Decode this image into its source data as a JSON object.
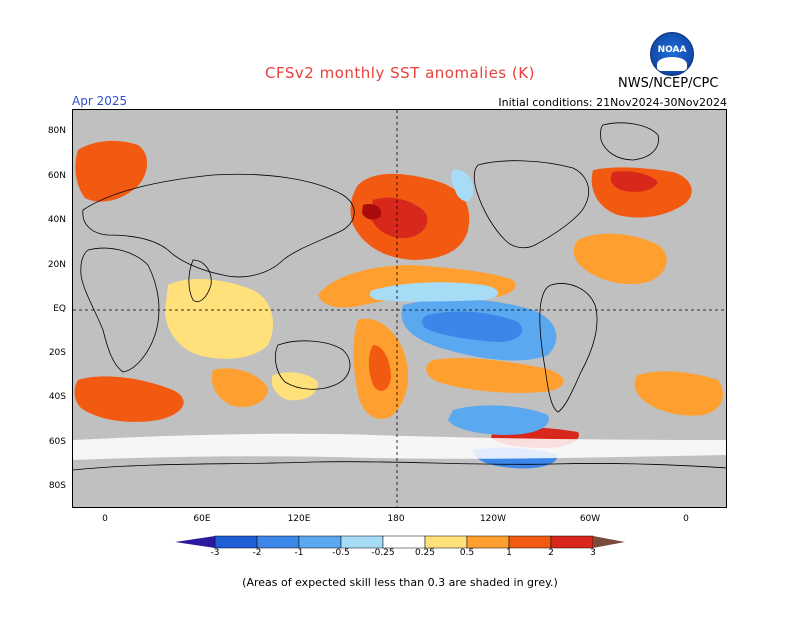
{
  "header": {
    "title": "CFSv2 monthly SST anomalies (K)",
    "agency": "NWS/NCEP/CPC",
    "month": "Apr 2025",
    "initial_conditions": "Initial conditions: 21Nov2024-30Nov2024"
  },
  "logo": {
    "text": "NOAA",
    "icon": "noaa-logo-icon"
  },
  "map": {
    "lat_labels": [
      "80N",
      "60N",
      "40N",
      "20N",
      "EQ",
      "20S",
      "40S",
      "60S",
      "80S"
    ],
    "lon_labels": [
      "0",
      "60E",
      "120E",
      "180",
      "120W",
      "60W",
      "0"
    ],
    "land_color": "#c0c0c0",
    "grid_lines": [
      "EQ",
      "180"
    ]
  },
  "colorbar": {
    "labels": [
      "-3",
      "-2",
      "-1",
      "-0.5",
      "-0.25",
      "0.25",
      "0.5",
      "1",
      "2",
      "3"
    ],
    "colors": [
      "#2b1a9e",
      "#1f5ed6",
      "#3b86e8",
      "#5aa8f0",
      "#a6dcf6",
      "#ffffff",
      "#ffe07a",
      "#ff9f30",
      "#f25a12",
      "#d8281c",
      "#a80c0c",
      "#7a4a3a"
    ]
  },
  "footnote": "(Areas of expected skill less than 0.3 are shaded in grey.)"
}
